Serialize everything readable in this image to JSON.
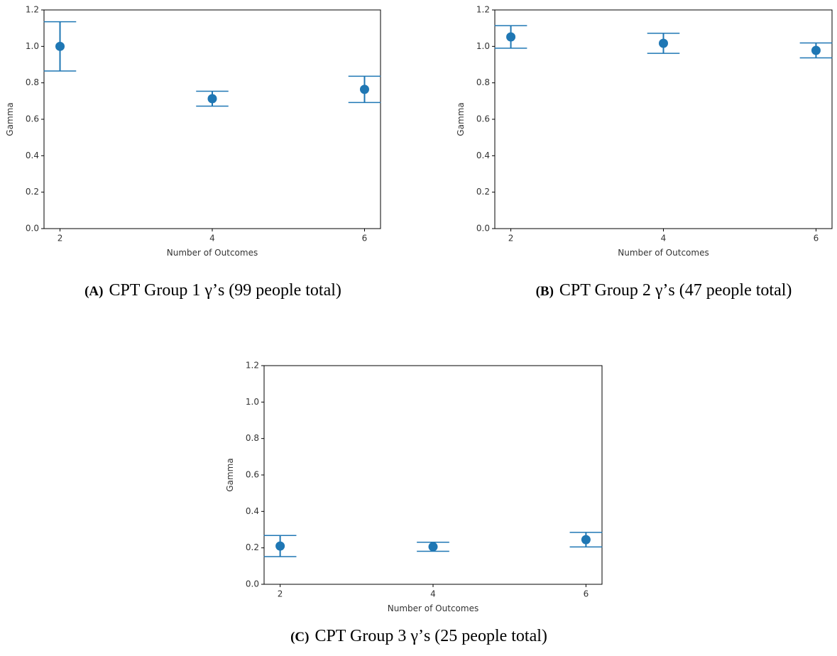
{
  "chart_data": [
    {
      "type": "errorbar",
      "caption_label": "(A)",
      "caption": "CPT Group 1 γ’s (99 people total)",
      "x_label": "Number of Outcomes",
      "y_label": "Gamma",
      "color": "#1f77b4",
      "x": [
        2,
        4,
        6
      ],
      "values": [
        1.0,
        0.713,
        0.764
      ],
      "errors": [
        0.135,
        0.041,
        0.072
      ],
      "xlim": [
        1.79,
        6.21
      ],
      "ylim": [
        0,
        1.2
      ],
      "xticks": [
        2,
        4,
        6
      ],
      "yticks": [
        {
          "value": 0,
          "label": "0.0"
        },
        0.2,
        0.4,
        0.6,
        0.8,
        {
          "value": 1,
          "label": "1.0"
        },
        1.2
      ]
    },
    {
      "type": "errorbar",
      "caption_label": "(B)",
      "caption": "CPT Group 2 γ’s (47 people total)",
      "x_label": "Number of Outcomes",
      "y_label": "Gamma",
      "color": "#1f77b4",
      "x": [
        2,
        4,
        6
      ],
      "values": [
        1.052,
        1.017,
        0.978
      ],
      "errors": [
        0.062,
        0.055,
        0.041
      ],
      "xlim": [
        1.79,
        6.21
      ],
      "ylim": [
        0,
        1.2
      ],
      "xticks": [
        2,
        4,
        6
      ],
      "yticks": [
        {
          "value": 0,
          "label": "0.0"
        },
        0.2,
        0.4,
        0.6,
        0.8,
        {
          "value": 1,
          "label": "1.0"
        },
        1.2
      ]
    },
    {
      "type": "errorbar",
      "caption_label": "(C)",
      "caption": "CPT Group 3 γ’s (25 people total)",
      "x_label": "Number of Outcomes",
      "y_label": "Gamma",
      "color": "#1f77b4",
      "x": [
        2,
        4,
        6
      ],
      "values": [
        0.21,
        0.206,
        0.245
      ],
      "errors": [
        0.058,
        0.025,
        0.04
      ],
      "xlim": [
        1.79,
        6.21
      ],
      "ylim": [
        0,
        1.2
      ],
      "xticks": [
        2,
        4,
        6
      ],
      "yticks": [
        {
          "value": 0,
          "label": "0.0"
        },
        0.2,
        0.4,
        0.6,
        0.8,
        {
          "value": 1,
          "label": "1.0"
        },
        1.2
      ]
    }
  ]
}
